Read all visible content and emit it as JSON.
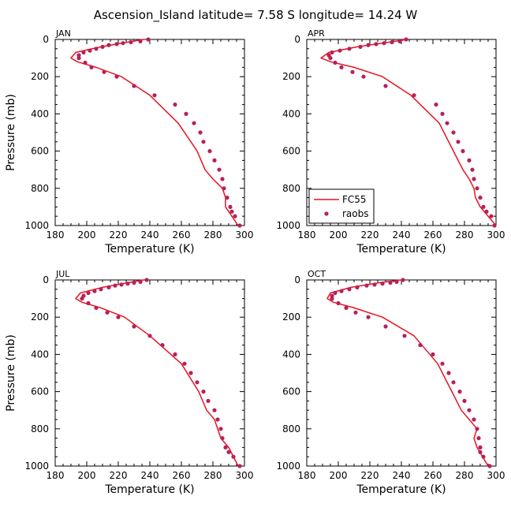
{
  "title": "Ascension_Island  latitude= 7.58 S longitude= 14.24 W",
  "colors": {
    "model": "#e8141e",
    "obs": "#b8205a",
    "axis": "#000000"
  },
  "chart_data": [
    {
      "type": "line",
      "panel": "JAN",
      "xlabel": "Temperature (K)",
      "ylabel": "Pressure (mb)",
      "xlim": [
        180,
        300
      ],
      "ylim": [
        1000,
        0
      ],
      "y_inverted": true,
      "xticks": [
        "180",
        "200",
        "220",
        "240",
        "260",
        "280",
        "300"
      ],
      "yticks": [
        "0",
        "200",
        "400",
        "600",
        "800",
        "1000"
      ],
      "legend": null,
      "series": [
        {
          "name": "FC55",
          "kind": "line",
          "x": [
            236,
            222,
            206,
            193,
            190,
            194,
            206,
            222,
            240,
            258,
            270,
            275,
            280,
            286,
            288,
            288,
            296
          ],
          "y": [
            0,
            20,
            45,
            70,
            100,
            120,
            150,
            200,
            300,
            450,
            600,
            700,
            750,
            800,
            850,
            900,
            1000
          ]
        },
        {
          "name": "raobs",
          "kind": "scatter",
          "x": [
            239,
            234,
            228,
            223,
            219,
            214,
            210,
            206,
            202,
            198,
            195,
            195,
            199,
            203,
            211,
            219,
            230,
            243,
            256,
            263,
            268,
            272,
            274,
            278,
            281,
            284,
            286,
            287,
            289,
            291,
            292,
            294,
            297
          ],
          "y": [
            0,
            10,
            15,
            20,
            25,
            30,
            40,
            50,
            60,
            70,
            85,
            100,
            125,
            150,
            175,
            200,
            250,
            300,
            350,
            400,
            450,
            500,
            550,
            600,
            650,
            700,
            750,
            800,
            850,
            900,
            925,
            950,
            1000
          ]
        }
      ]
    },
    {
      "type": "line",
      "panel": "APR",
      "xlabel": "Temperature (K)",
      "ylabel": "",
      "xlim": [
        180,
        300
      ],
      "ylim": [
        1000,
        0
      ],
      "y_inverted": true,
      "xticks": [
        "180",
        "200",
        "220",
        "240",
        "260",
        "280",
        "300"
      ],
      "yticks": [
        "0",
        "200",
        "400",
        "600",
        "800",
        "1000"
      ],
      "legend": {
        "position": "bottom-left",
        "entries": [
          "FC55",
          "raobs"
        ]
      },
      "series": [
        {
          "name": "FC55",
          "kind": "line",
          "x": [
            244,
            232,
            212,
            194,
            189,
            195,
            210,
            228,
            246,
            264,
            273,
            279,
            283,
            286,
            287,
            290,
            300
          ],
          "y": [
            0,
            15,
            40,
            70,
            100,
            120,
            150,
            200,
            300,
            450,
            600,
            700,
            750,
            800,
            850,
            900,
            1000
          ]
        },
        {
          "name": "raobs",
          "kind": "scatter",
          "x": [
            243,
            239,
            234,
            229,
            224,
            219,
            214,
            207,
            201,
            196,
            194,
            195,
            198,
            202,
            209,
            216,
            230,
            248,
            262,
            266,
            269,
            273,
            276,
            279,
            283,
            285,
            286,
            288,
            290,
            292,
            294,
            297,
            299
          ],
          "y": [
            0,
            10,
            15,
            20,
            25,
            30,
            40,
            50,
            60,
            70,
            85,
            100,
            125,
            150,
            175,
            200,
            250,
            300,
            350,
            400,
            450,
            500,
            550,
            600,
            650,
            700,
            750,
            800,
            850,
            900,
            925,
            950,
            1000
          ]
        }
      ]
    },
    {
      "type": "line",
      "panel": "JUL",
      "xlabel": "Temperature (K)",
      "ylabel": "Pressure (mb)",
      "xlim": [
        180,
        300
      ],
      "ylim": [
        1000,
        0
      ],
      "y_inverted": true,
      "xticks": [
        "180",
        "200",
        "220",
        "240",
        "260",
        "280",
        "300"
      ],
      "yticks": [
        "0",
        "200",
        "400",
        "600",
        "800",
        "1000"
      ],
      "legend": null,
      "series": [
        {
          "name": "FC55",
          "kind": "line",
          "x": [
            236,
            226,
            210,
            196,
            193,
            197,
            209,
            224,
            240,
            260,
            271,
            276,
            281,
            283,
            285,
            290,
            296
          ],
          "y": [
            0,
            15,
            40,
            70,
            100,
            120,
            150,
            200,
            300,
            450,
            600,
            700,
            750,
            800,
            850,
            900,
            1000
          ]
        },
        {
          "name": "raobs",
          "kind": "scatter",
          "x": [
            238,
            234,
            230,
            226,
            222,
            218,
            214,
            209,
            205,
            201,
            198,
            197,
            201,
            206,
            213,
            220,
            230,
            240,
            248,
            256,
            262,
            266,
            270,
            274,
            277,
            281,
            283,
            285,
            286,
            288,
            290,
            293,
            297
          ],
          "y": [
            0,
            10,
            15,
            20,
            25,
            30,
            40,
            50,
            60,
            70,
            85,
            100,
            125,
            150,
            175,
            200,
            250,
            300,
            350,
            400,
            450,
            500,
            550,
            600,
            650,
            700,
            750,
            800,
            850,
            900,
            925,
            950,
            1000
          ]
        }
      ]
    },
    {
      "type": "line",
      "panel": "OCT",
      "xlabel": "Temperature (K)",
      "ylabel": "",
      "xlim": [
        180,
        300
      ],
      "ylim": [
        1000,
        0
      ],
      "y_inverted": true,
      "xticks": [
        "180",
        "200",
        "220",
        "240",
        "260",
        "280",
        "300"
      ],
      "yticks": [
        "0",
        "200",
        "400",
        "600",
        "800",
        "1000"
      ],
      "legend": null,
      "series": [
        {
          "name": "FC55",
          "kind": "line",
          "x": [
            240,
            226,
            208,
            195,
            193,
            197,
            210,
            228,
            248,
            263,
            272,
            278,
            283,
            288,
            286,
            288,
            295
          ],
          "y": [
            0,
            15,
            40,
            70,
            100,
            120,
            150,
            200,
            300,
            450,
            600,
            700,
            750,
            800,
            850,
            900,
            1000
          ]
        },
        {
          "name": "raobs",
          "kind": "scatter",
          "x": [
            241,
            237,
            233,
            228,
            223,
            218,
            212,
            207,
            202,
            198,
            196,
            196,
            200,
            205,
            211,
            219,
            230,
            242,
            252,
            260,
            266,
            270,
            273,
            277,
            280,
            283,
            286,
            288,
            289,
            290,
            290,
            292,
            296
          ],
          "y": [
            0,
            10,
            15,
            20,
            25,
            30,
            40,
            50,
            60,
            70,
            85,
            100,
            125,
            150,
            175,
            200,
            250,
            300,
            350,
            400,
            450,
            500,
            550,
            600,
            650,
            700,
            750,
            800,
            850,
            900,
            925,
            950,
            1000
          ]
        }
      ]
    }
  ]
}
